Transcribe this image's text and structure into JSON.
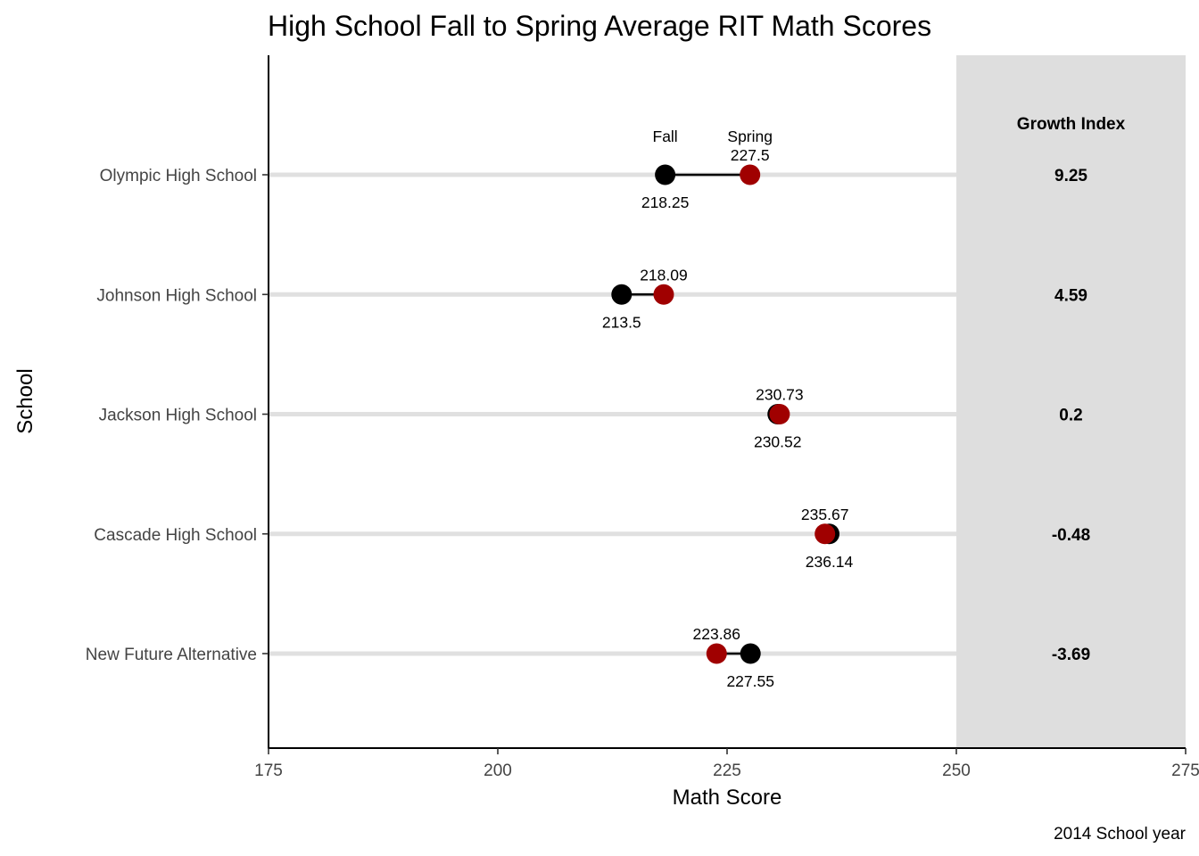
{
  "chart_data": {
    "type": "dumbbell",
    "title": "High School Fall to Spring Average RIT Math Scores",
    "xlabel": "Math Score",
    "ylabel": "School",
    "caption": "2014 School year",
    "xlim": [
      175,
      275
    ],
    "xticks": [
      "175",
      "200",
      "225",
      "250",
      "275"
    ],
    "grid": false,
    "series_labels": {
      "fall": "Fall",
      "spring": "Spring"
    },
    "colors": {
      "fall": "#000000",
      "spring": "#a00000",
      "track": "#e0e0e0",
      "panel": "#dedede"
    },
    "growth_header": "Growth Index",
    "schools": [
      {
        "name": "Olympic High School",
        "fall": 218.25,
        "spring": 227.5,
        "fall_label": "218.25",
        "spring_label": "227.5",
        "growth": "9.25"
      },
      {
        "name": "Johnson High School",
        "fall": 213.5,
        "spring": 218.09,
        "fall_label": "213.5",
        "spring_label": "218.09",
        "growth": "4.59"
      },
      {
        "name": "Jackson High School",
        "fall": 230.52,
        "spring": 230.73,
        "fall_label": "230.52",
        "spring_label": "230.73",
        "growth": "0.2"
      },
      {
        "name": "Cascade High School",
        "fall": 236.14,
        "spring": 235.67,
        "fall_label": "236.14",
        "spring_label": "235.67",
        "growth": "-0.48"
      },
      {
        "name": "New Future Alternative",
        "fall": 227.55,
        "spring": 223.86,
        "fall_label": "227.55",
        "spring_label": "223.86",
        "growth": "-3.69"
      }
    ]
  }
}
